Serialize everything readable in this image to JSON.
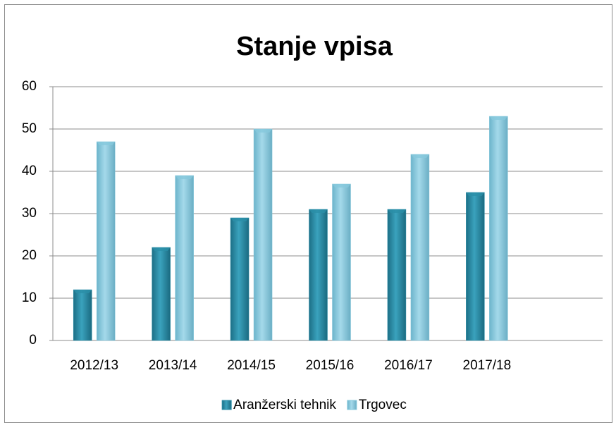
{
  "chart_data": {
    "type": "bar",
    "title": "Stanje vpisa",
    "categories": [
      "2012/13",
      "2013/14",
      "2014/15",
      "2015/16",
      "2016/17",
      "2017/18",
      null
    ],
    "series": [
      {
        "name": "Aranžerski tehnik",
        "color": "#2a8ea8",
        "values": [
          12,
          22,
          29,
          31,
          31,
          35,
          null
        ]
      },
      {
        "name": "Trgovec",
        "color": "#86c8dc",
        "values": [
          47,
          39,
          50,
          37,
          44,
          53,
          null
        ]
      }
    ],
    "ylim": [
      0,
      60
    ],
    "yticks": [
      0,
      10,
      20,
      30,
      40,
      50,
      60
    ],
    "grid": true,
    "legend": "bottom"
  }
}
